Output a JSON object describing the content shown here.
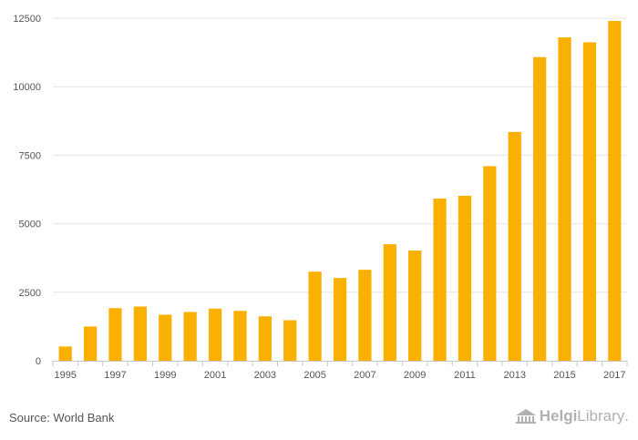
{
  "chart_data": {
    "type": "bar",
    "title": "",
    "xlabel": "",
    "ylabel": "",
    "categories": [
      "1995",
      "1996",
      "1997",
      "1998",
      "1999",
      "2000",
      "2001",
      "2002",
      "2003",
      "2004",
      "2005",
      "2006",
      "2007",
      "2008",
      "2009",
      "2010",
      "2011",
      "2012",
      "2013",
      "2014",
      "2015",
      "2016",
      "2017"
    ],
    "values": [
      520,
      1250,
      1920,
      1980,
      1680,
      1780,
      1900,
      1820,
      1620,
      1480,
      3250,
      3020,
      3320,
      4250,
      4020,
      5920,
      6020,
      7100,
      8350,
      11080,
      11800,
      11620,
      12400
    ],
    "ylim": [
      0,
      12500
    ],
    "yticks": [
      "0",
      "2500",
      "5000",
      "7500",
      "10000",
      "12500"
    ],
    "xtick_labels": [
      "1995",
      "1997",
      "1999",
      "2001",
      "2003",
      "2005",
      "2007",
      "2009",
      "2011",
      "2013",
      "2015",
      "2017"
    ],
    "grid": true,
    "bar_color": "#f9b000"
  },
  "footer": {
    "source": "Source: World Bank",
    "logo_word1": "Helgi",
    "logo_word2": "Library",
    "logo_dot": "."
  },
  "colors": {
    "bar": "#f9b000",
    "grid": "#e6e6e6",
    "text": "#555555",
    "logo": "#b0b0b0"
  }
}
